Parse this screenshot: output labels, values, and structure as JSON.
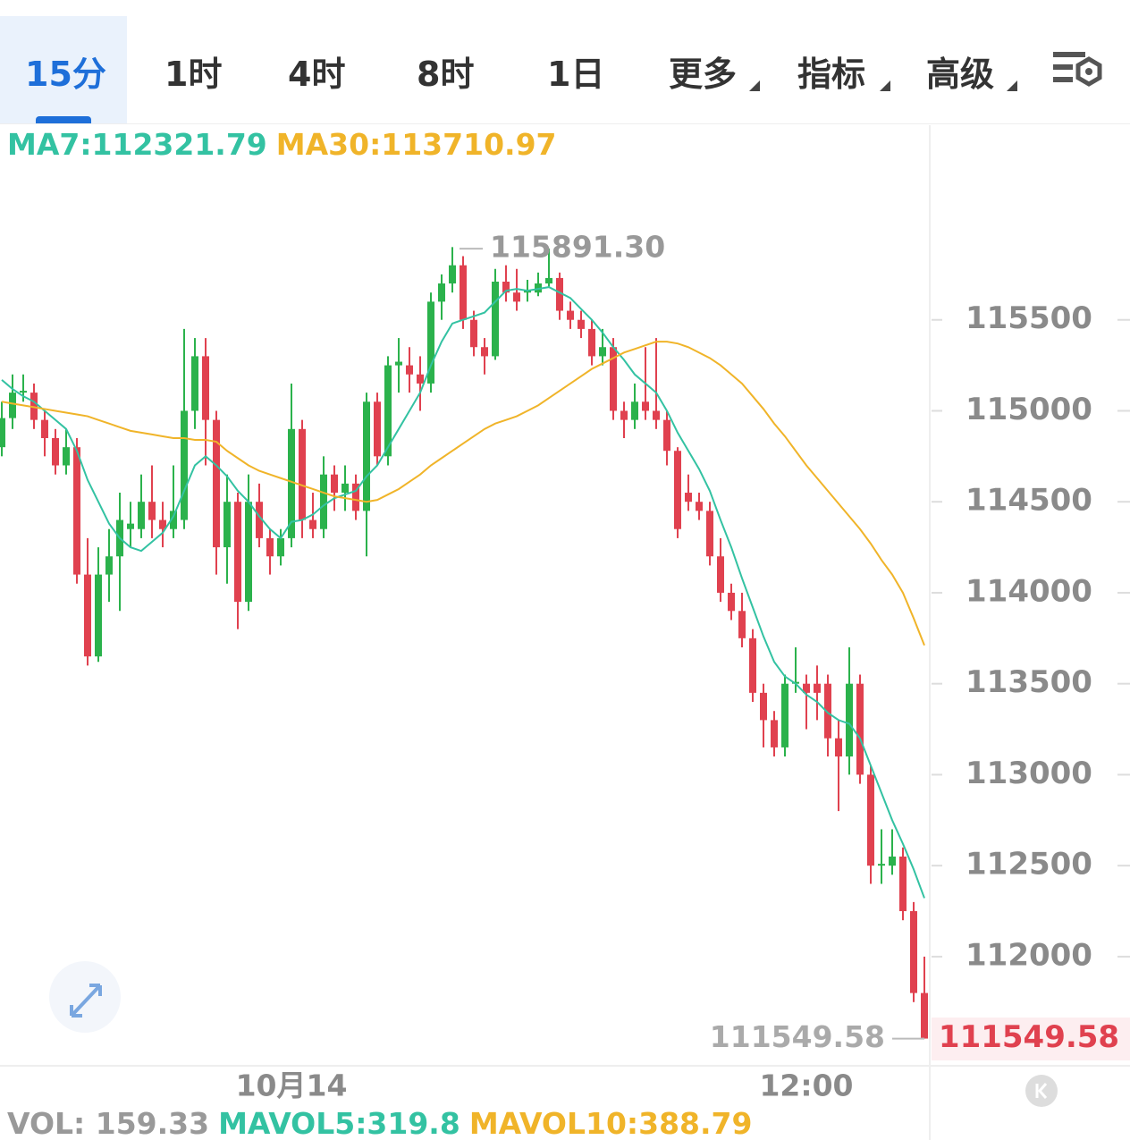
{
  "tabs": [
    "15分",
    "1时",
    "4时",
    "8时",
    "1日",
    "更多",
    "指标",
    "高级"
  ],
  "chart_data": {
    "type": "candlestick",
    "indicator_labels": [
      {
        "text": "MA7:112321.79",
        "color": "#33c2a2"
      },
      {
        "text": "MA30:113710.97",
        "color": "#f0b429"
      }
    ],
    "volume_labels": [
      {
        "text": "VOL: 159.33",
        "color": "#999999"
      },
      {
        "text": "MAVOL5:319.8",
        "color": "#33c2a2"
      },
      {
        "text": "MAVOL10:388.79",
        "color": "#f0b429"
      }
    ],
    "categories": [
      null,
      null,
      null,
      null,
      null,
      null,
      null,
      null,
      null,
      null,
      null,
      null,
      null,
      null,
      null,
      null,
      null,
      null,
      null,
      null,
      null,
      null,
      null,
      null,
      null,
      null,
      null,
      "10月14",
      null,
      null,
      null,
      null,
      null,
      null,
      null,
      null,
      null,
      null,
      null,
      null,
      null,
      null,
      null,
      null,
      null,
      null,
      null,
      null,
      null,
      null,
      null,
      null,
      null,
      null,
      null,
      null,
      null,
      null,
      null,
      null,
      null,
      null,
      null,
      null,
      null,
      null,
      null,
      null,
      null,
      null,
      null,
      null,
      null,
      null,
      null,
      "12:00",
      null,
      null,
      null,
      null,
      null,
      null,
      null,
      null,
      null,
      null,
      null
    ],
    "open": [
      114800,
      114960,
      115100,
      115100,
      114950,
      114850,
      114700,
      114800,
      114100,
      113650,
      114100,
      114200,
      114350,
      114350,
      114500,
      114400,
      114350,
      114400,
      115000,
      115300,
      114950,
      114250,
      114500,
      113950,
      114500,
      114300,
      114200,
      114300,
      114900,
      114400,
      114350,
      114650,
      114550,
      114600,
      114450,
      115050,
      114750,
      115250,
      115250,
      115200,
      115150,
      115600,
      115700,
      115800,
      115500,
      115350,
      115300,
      115710,
      115650,
      115650,
      115650,
      115700,
      115730,
      115550,
      115500,
      115450,
      115300,
      115350,
      115000,
      114950,
      115050,
      115000,
      114950,
      114780,
      114550,
      114500,
      114450,
      114200,
      114000,
      113900,
      113750,
      113450,
      113300,
      113150,
      113500,
      113500,
      113500,
      113500,
      113200,
      113100,
      113500,
      113000,
      112500,
      112500,
      112550,
      112250,
      111800
    ],
    "high": [
      115050,
      115200,
      115200,
      115150,
      115000,
      114900,
      114900,
      114850,
      114300,
      114250,
      114350,
      114550,
      114500,
      114650,
      114700,
      114500,
      114700,
      115450,
      115400,
      115400,
      115000,
      114650,
      114550,
      114650,
      114600,
      114350,
      114350,
      115150,
      114950,
      114550,
      114750,
      114700,
      114700,
      114650,
      115100,
      115100,
      115300,
      115400,
      115350,
      115300,
      115650,
      115750,
      115900,
      115850,
      115550,
      115400,
      115780,
      115800,
      115780,
      115720,
      115760,
      115891.3,
      115760,
      115600,
      115550,
      115500,
      115450,
      115400,
      115050,
      115150,
      115350,
      115400,
      115000,
      114800,
      114650,
      114550,
      114500,
      114300,
      114050,
      114000,
      113800,
      113500,
      113350,
      113550,
      113700,
      113550,
      113600,
      113550,
      113300,
      113700,
      113550,
      113050,
      112700,
      112700,
      112600,
      112300,
      112000
    ],
    "low": [
      114750,
      114900,
      115050,
      114900,
      114750,
      114650,
      114650,
      114050,
      113600,
      113620,
      113950,
      113900,
      114250,
      114300,
      114300,
      114250,
      114300,
      114350,
      114900,
      114700,
      114100,
      114050,
      113800,
      113900,
      114250,
      114100,
      114150,
      114250,
      114300,
      114300,
      114300,
      114450,
      114450,
      114400,
      114200,
      114700,
      114700,
      115100,
      115100,
      115000,
      115100,
      115500,
      115650,
      115450,
      115300,
      115200,
      115280,
      115600,
      115550,
      115600,
      115630,
      115680,
      115500,
      115450,
      115400,
      115250,
      115250,
      114950,
      114850,
      114900,
      114950,
      114900,
      114700,
      114300,
      114450,
      114400,
      114150,
      113950,
      113850,
      113700,
      113400,
      113150,
      113100,
      113100,
      113450,
      113250,
      113300,
      113100,
      112800,
      113000,
      112950,
      112400,
      112400,
      112450,
      112200,
      111750,
      111549.58
    ],
    "close": [
      114960,
      115100,
      115110,
      114950,
      114850,
      114700,
      114800,
      114100,
      113650,
      114100,
      114200,
      114400,
      114380,
      114500,
      114400,
      114350,
      114450,
      115000,
      115300,
      114950,
      114250,
      114500,
      113950,
      114500,
      114300,
      114200,
      114300,
      114900,
      114400,
      114350,
      114650,
      114550,
      114600,
      114450,
      115050,
      114750,
      115250,
      115270,
      115200,
      115150,
      115600,
      115700,
      115800,
      115500,
      115350,
      115300,
      115710,
      115650,
      115600,
      115660,
      115700,
      115730,
      115550,
      115500,
      115450,
      115300,
      115350,
      115000,
      114950,
      115050,
      115000,
      114950,
      114780,
      114350,
      114500,
      114450,
      114200,
      114000,
      113900,
      113750,
      113450,
      113300,
      113150,
      113500,
      113510,
      113450,
      113450,
      113200,
      113100,
      113500,
      113000,
      112500,
      112510,
      112550,
      112250,
      111800,
      111549.58
    ],
    "up_color": "#2bb24c",
    "down_color": "#e0414f",
    "series": [
      {
        "name": "MA7",
        "color": "#33c2a2",
        "values": [
          115170,
          115120,
          115080,
          115050,
          115000,
          114950,
          114900,
          114780,
          114620,
          114500,
          114380,
          114300,
          114250,
          114230,
          114280,
          114330,
          114420,
          114560,
          114700,
          114750,
          114700,
          114640,
          114560,
          114500,
          114420,
          114350,
          114300,
          114390,
          114400,
          114430,
          114480,
          114520,
          114540,
          114560,
          114640,
          114700,
          114800,
          114900,
          115000,
          115100,
          115250,
          115380,
          115480,
          115500,
          115520,
          115540,
          115600,
          115660,
          115670,
          115660,
          115670,
          115680,
          115650,
          115620,
          115560,
          115500,
          115430,
          115350,
          115280,
          115200,
          115150,
          115100,
          115000,
          114880,
          114780,
          114680,
          114560,
          114400,
          114250,
          114080,
          113920,
          113760,
          113620,
          113540,
          113500,
          113440,
          113400,
          113340,
          113300,
          113280,
          113200,
          113050,
          112900,
          112750,
          112620,
          112480,
          112321.79
        ]
      },
      {
        "name": "MA30",
        "color": "#f0b429",
        "values": [
          115050,
          115040,
          115030,
          115020,
          115010,
          115000,
          114990,
          114980,
          114970,
          114950,
          114930,
          114910,
          114890,
          114880,
          114870,
          114860,
          114850,
          114850,
          114840,
          114840,
          114830,
          114780,
          114740,
          114700,
          114670,
          114650,
          114630,
          114610,
          114590,
          114570,
          114550,
          114530,
          114520,
          114510,
          114500,
          114510,
          114540,
          114570,
          114610,
          114650,
          114700,
          114740,
          114780,
          114820,
          114860,
          114900,
          114930,
          114950,
          114970,
          115000,
          115030,
          115070,
          115110,
          115150,
          115190,
          115230,
          115260,
          115290,
          115320,
          115340,
          115360,
          115380,
          115380,
          115370,
          115350,
          115320,
          115290,
          115250,
          115200,
          115150,
          115080,
          115010,
          114930,
          114860,
          114780,
          114700,
          114630,
          114560,
          114490,
          114420,
          114350,
          114270,
          114180,
          114100,
          114000,
          113860,
          113710.97
        ]
      }
    ],
    "ylim": [
      111400,
      116570
    ],
    "yticks": [
      112000,
      112500,
      113000,
      113500,
      114000,
      114500,
      115000,
      115500
    ],
    "annotations": [
      {
        "value": 115891.3,
        "label": "115891.30"
      },
      {
        "value": 111549.58,
        "label": "111549.58"
      }
    ]
  }
}
